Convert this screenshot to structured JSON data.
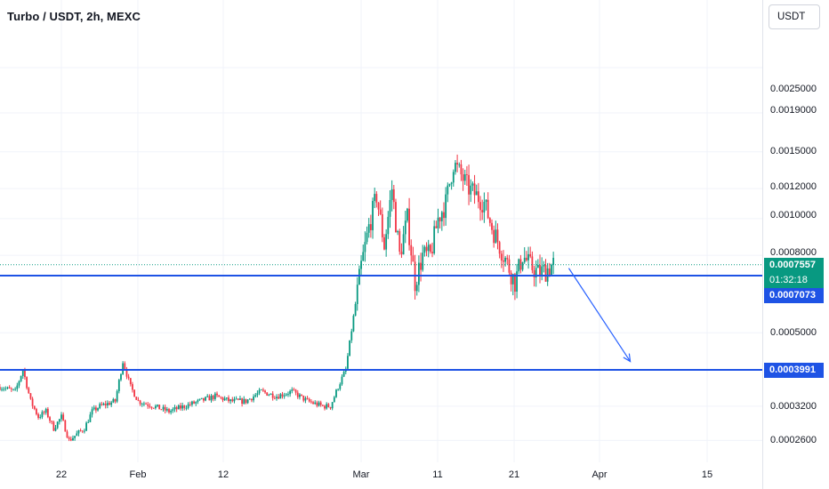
{
  "header": {
    "symbol_title": "Turbo / USDT, 2h, MEXC",
    "currency_button": "USDT"
  },
  "price_axis": {
    "ticks": [
      "0.0025000",
      "0.0019000",
      "0.0015000",
      "0.0012000",
      "0.0010000",
      "0.0008000",
      "0.0005000",
      "0.0003200",
      "0.0002600"
    ],
    "last_price": "0.0007557",
    "countdown": "01:32:18",
    "level_upper": "0.0007073",
    "level_lower": "0.0003991"
  },
  "time_axis": {
    "ticks": [
      "22",
      "Feb",
      "12",
      "Mar",
      "11",
      "21",
      "Apr",
      "15"
    ]
  },
  "colors": {
    "up": "#089981",
    "down": "#f23645",
    "level_line": "#1e53e5",
    "arrow": "#2962ff",
    "grid": "#f0f3fa"
  },
  "chart_data": {
    "type": "candlestick",
    "title": "Turbo / USDT, 2h, MEXC",
    "yscale": "log",
    "ylim": [
      0.00024,
      0.0031
    ],
    "xlim": [
      "2024-01-14",
      "2024-04-24"
    ],
    "horizontal_levels": [
      0.0007073,
      0.0003991
    ],
    "last_price": 0.0007557,
    "annotation": {
      "type": "arrow",
      "from": [
        "2024-03-28",
        0.00074
      ],
      "to": [
        "2024-04-05",
        0.00042
      ]
    },
    "series": [
      {
        "values": [
          [
            "2024-01-14",
            0.00036
          ],
          [
            "2024-01-16",
            0.00035
          ],
          [
            "2024-01-17",
            0.0004
          ],
          [
            "2024-01-18",
            0.00033
          ],
          [
            "2024-01-19",
            0.0003
          ],
          [
            "2024-01-20",
            0.00031
          ],
          [
            "2024-01-21",
            0.00028
          ],
          [
            "2024-01-22",
            0.0003
          ],
          [
            "2024-01-23",
            0.00026
          ],
          [
            "2024-01-24",
            0.00027
          ],
          [
            "2024-01-25",
            0.00028
          ],
          [
            "2024-01-26",
            0.00031
          ],
          [
            "2024-01-27",
            0.00032
          ],
          [
            "2024-01-29",
            0.00033
          ],
          [
            "2024-01-30",
            0.00042
          ],
          [
            "2024-01-31",
            0.00036
          ],
          [
            "2024-02-01",
            0.00033
          ],
          [
            "2024-02-03",
            0.00032
          ],
          [
            "2024-02-05",
            0.00031
          ],
          [
            "2024-02-07",
            0.00032
          ],
          [
            "2024-02-09",
            0.00033
          ],
          [
            "2024-02-11",
            0.00034
          ],
          [
            "2024-02-13",
            0.00033
          ],
          [
            "2024-02-15",
            0.00033
          ],
          [
            "2024-02-17",
            0.00035
          ],
          [
            "2024-02-19",
            0.00034
          ],
          [
            "2024-02-21",
            0.00035
          ],
          [
            "2024-02-23",
            0.00033
          ],
          [
            "2024-02-25",
            0.00032
          ],
          [
            "2024-02-26",
            0.00032
          ],
          [
            "2024-02-27",
            0.00036
          ],
          [
            "2024-02-28",
            0.0004
          ],
          [
            "2024-02-29",
            0.00055
          ],
          [
            "2024-03-01",
            0.00075
          ],
          [
            "2024-03-02",
            0.00095
          ],
          [
            "2024-03-03",
            0.00115
          ],
          [
            "2024-03-04",
            0.00085
          ],
          [
            "2024-03-05",
            0.0012
          ],
          [
            "2024-03-06",
            0.0008
          ],
          [
            "2024-03-07",
            0.001
          ],
          [
            "2024-03-08",
            0.00068
          ],
          [
            "2024-03-09",
            0.0008
          ],
          [
            "2024-03-10",
            0.0008
          ],
          [
            "2024-03-11",
            0.001
          ],
          [
            "2024-03-12",
            0.0011
          ],
          [
            "2024-03-13",
            0.0014
          ],
          [
            "2024-03-14",
            0.0013
          ],
          [
            "2024-03-15",
            0.0012
          ],
          [
            "2024-03-16",
            0.00115
          ],
          [
            "2024-03-17",
            0.0011
          ],
          [
            "2024-03-18",
            0.00095
          ],
          [
            "2024-03-19",
            0.00085
          ],
          [
            "2024-03-20",
            0.00076
          ],
          [
            "2024-03-21",
            0.00068
          ],
          [
            "2024-03-22",
            0.0008
          ],
          [
            "2024-03-23",
            0.00075
          ],
          [
            "2024-03-24",
            0.00072
          ],
          [
            "2024-03-25",
            0.00073
          ],
          [
            "2024-03-26",
            0.00076
          ]
        ]
      }
    ]
  }
}
